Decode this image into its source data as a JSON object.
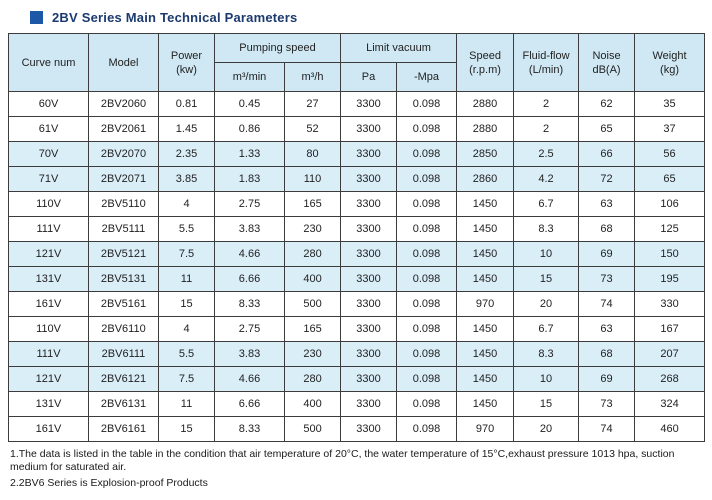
{
  "title": "2BV Series Main Technical Parameters",
  "colors": {
    "accent_square": "#1c57a8",
    "title_text": "#1b3a70",
    "header_bg": "#cfe8f4",
    "shaded_row_bg": "#daeef8",
    "border": "#3c3c3c"
  },
  "table": {
    "header": {
      "curve": "Curve num",
      "model": "Model",
      "power_line1": "Power",
      "power_line2": "(kw)",
      "pumping_speed": "Pumping speed",
      "m3_min": "m³/min",
      "m3_h": "m³/h",
      "limit_vacuum": "Limit vacuum",
      "pa": "Pa",
      "mpa": "-Mpa",
      "speed_line1": "Speed",
      "speed_line2": "(r.p.m)",
      "fluid_line1": "Fluid-flow",
      "fluid_line2": "(L/min)",
      "noise_line1": "Noise",
      "noise_line2": "dB(A)",
      "weight_line1": "Weight",
      "weight_line2": "(kg)"
    },
    "rows": [
      {
        "shaded": false,
        "values": [
          "60V",
          "2BV2060",
          "0.81",
          "0.45",
          "27",
          "3300",
          "0.098",
          "2880",
          "2",
          "62",
          "35"
        ]
      },
      {
        "shaded": false,
        "values": [
          "61V",
          "2BV2061",
          "1.45",
          "0.86",
          "52",
          "3300",
          "0.098",
          "2880",
          "2",
          "65",
          "37"
        ]
      },
      {
        "shaded": true,
        "values": [
          "70V",
          "2BV2070",
          "2.35",
          "1.33",
          "80",
          "3300",
          "0.098",
          "2850",
          "2.5",
          "66",
          "56"
        ]
      },
      {
        "shaded": true,
        "values": [
          "71V",
          "2BV2071",
          "3.85",
          "1.83",
          "110",
          "3300",
          "0.098",
          "2860",
          "4.2",
          "72",
          "65"
        ]
      },
      {
        "shaded": false,
        "values": [
          "110V",
          "2BV5110",
          "4",
          "2.75",
          "165",
          "3300",
          "0.098",
          "1450",
          "6.7",
          "63",
          "106"
        ]
      },
      {
        "shaded": false,
        "values": [
          "111V",
          "2BV5111",
          "5.5",
          "3.83",
          "230",
          "3300",
          "0.098",
          "1450",
          "8.3",
          "68",
          "125"
        ]
      },
      {
        "shaded": true,
        "values": [
          "121V",
          "2BV5121",
          "7.5",
          "4.66",
          "280",
          "3300",
          "0.098",
          "1450",
          "10",
          "69",
          "150"
        ]
      },
      {
        "shaded": true,
        "values": [
          "131V",
          "2BV5131",
          "11",
          "6.66",
          "400",
          "3300",
          "0.098",
          "1450",
          "15",
          "73",
          "195"
        ]
      },
      {
        "shaded": false,
        "values": [
          "161V",
          "2BV5161",
          "15",
          "8.33",
          "500",
          "3300",
          "0.098",
          "970",
          "20",
          "74",
          "330"
        ]
      },
      {
        "shaded": false,
        "values": [
          "110V",
          "2BV6110",
          "4",
          "2.75",
          "165",
          "3300",
          "0.098",
          "1450",
          "6.7",
          "63",
          "167"
        ]
      },
      {
        "shaded": true,
        "values": [
          "111V",
          "2BV6111",
          "5.5",
          "3.83",
          "230",
          "3300",
          "0.098",
          "1450",
          "8.3",
          "68",
          "207"
        ]
      },
      {
        "shaded": true,
        "values": [
          "121V",
          "2BV6121",
          "7.5",
          "4.66",
          "280",
          "3300",
          "0.098",
          "1450",
          "10",
          "69",
          "268"
        ]
      },
      {
        "shaded": false,
        "values": [
          "131V",
          "2BV6131",
          "11",
          "6.66",
          "400",
          "3300",
          "0.098",
          "1450",
          "15",
          "73",
          "324"
        ]
      },
      {
        "shaded": false,
        "values": [
          "161V",
          "2BV6161",
          "15",
          "8.33",
          "500",
          "3300",
          "0.098",
          "970",
          "20",
          "74",
          "460"
        ]
      }
    ]
  },
  "notes": {
    "note1": "1.The data is listed in the table in the condition that air temperature of 20°C, the water temperature of 15°C,exhaust pressure 1013 hpa, suction medium for saturated air.",
    "note2": "2.2BV6 Series is Explosion-proof Products"
  }
}
